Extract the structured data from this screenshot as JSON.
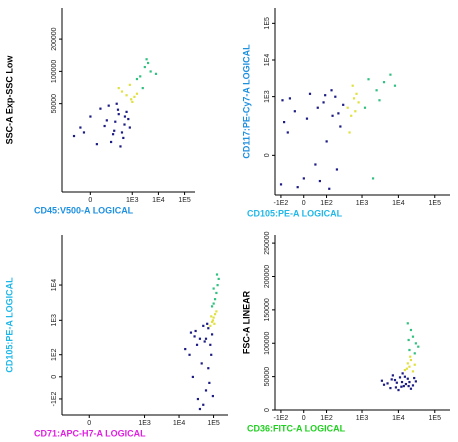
{
  "chart_data": [
    {
      "type": "scatter",
      "x_label": "CD45:V500-A LOGICAL",
      "x_label_color": "#1e90e0",
      "y_label": "SSC-A Exp-SSC Low",
      "y_label_color": "#000000",
      "xscale": "logicle",
      "yscale": "log",
      "xlim": [
        -300,
        250000
      ],
      "ylim": [
        7500,
        390000
      ],
      "xticks": [
        0,
        {
          "value": 1000,
          "label": "1E3"
        },
        {
          "value": 10000,
          "label": "1E4"
        },
        {
          "value": 100000,
          "label": "1E5"
        }
      ],
      "yticks": [
        50000,
        100000,
        200000
      ],
      "series": [
        {
          "color": "#1c1c85",
          "x": [
            -50,
            100,
            200,
            300,
            -100,
            500,
            50,
            150,
            400,
            250,
            700,
            0,
            350,
            80,
            600,
            -30,
            220,
            450,
            120,
            800,
            30,
            280,
            520,
            180
          ],
          "values": [
            30000,
            35000,
            28000,
            40000,
            25000,
            32000,
            45000,
            22000,
            27000,
            50000,
            36000,
            38000,
            20000,
            31000,
            42000,
            27000,
            34000,
            24000,
            48000,
            30000,
            21000,
            44000,
            38000,
            26000
          ]
        },
        {
          "color": "#e0e040",
          "x": [
            600,
            900,
            400,
            1200,
            300,
            1500,
            800,
            1000
          ],
          "values": [
            60000,
            55000,
            65000,
            58000,
            70000,
            62000,
            75000,
            52000
          ]
        },
        {
          "color": "#30c080",
          "x": [
            2000,
            3000,
            1500,
            4000,
            2500,
            5000,
            3500,
            8000
          ],
          "values": [
            90000,
            110000,
            85000,
            120000,
            70000,
            100000,
            130000,
            95000
          ]
        }
      ]
    },
    {
      "type": "scatter",
      "x_label": "CD105:PE-A LOGICAL",
      "x_label_color": "#20b8e8",
      "y_label": "CD117:PE-Cy7-A LOGICAL",
      "y_label_color": "#1e90e0",
      "xscale": "logicle",
      "yscale": "logicle",
      "xlim": [
        -150,
        262144
      ],
      "ylim": [
        -300,
        262144
      ],
      "xticks": [
        {
          "value": -100,
          "label": "-1E2"
        },
        0,
        {
          "value": 100,
          "label": "1E2"
        },
        {
          "value": 1000,
          "label": "1E3"
        },
        {
          "value": 10000,
          "label": "1E4"
        },
        {
          "value": 100000,
          "label": "1E5"
        }
      ],
      "yticks": [
        0,
        {
          "value": 1000,
          "label": "1E3"
        },
        {
          "value": 10000,
          "label": "1E4"
        },
        {
          "value": 100000,
          "label": "1E5"
        }
      ],
      "series": [
        {
          "color": "#1c1c85",
          "x": [
            -80,
            0,
            50,
            100,
            -50,
            150,
            200,
            20,
            -100,
            80,
            250,
            -30,
            120,
            180,
            60,
            -60,
            300,
            10,
            140,
            -90,
            40,
            220,
            90,
            -20
          ],
          "values": [
            200,
            -100,
            500,
            50,
            900,
            300,
            -50,
            1200,
            -150,
            700,
            150,
            400,
            -200,
            1000,
            -120,
            100,
            600,
            250,
            1500,
            800,
            -30,
            350,
            1100,
            -180
          ]
        },
        {
          "color": "#e0e040",
          "x": [
            400,
            600,
            500,
            700,
            450,
            800,
            550,
            650
          ],
          "values": [
            500,
            900,
            300,
            1200,
            100,
            700,
            2000,
            400
          ]
        },
        {
          "color": "#30c080",
          "x": [
            1500,
            2500,
            4000,
            1200,
            6000,
            2000,
            3000,
            8000
          ],
          "values": [
            3000,
            1500,
            2500,
            500,
            4000,
            -100,
            800,
            2000
          ]
        }
      ]
    },
    {
      "type": "scatter",
      "x_label": "CD71:APC-H7-A LOGICAL",
      "x_label_color": "#e020e0",
      "y_label": "CD105:PE-A LOGICAL",
      "y_label_color": "#20b8e8",
      "xscale": "logicle",
      "yscale": "logicle",
      "xlim": [
        -150,
        262144
      ],
      "ylim": [
        -300,
        262144
      ],
      "xticks": [
        0,
        {
          "value": 1000,
          "label": "1E3"
        },
        {
          "value": 10000,
          "label": "1E4"
        },
        {
          "value": 100000,
          "label": "1E5"
        }
      ],
      "yticks": [
        {
          "value": -100,
          "label": "-1E2"
        },
        0,
        {
          "value": 100,
          "label": "1E2"
        },
        {
          "value": 1000,
          "label": "1E3"
        },
        {
          "value": 10000,
          "label": "1E4"
        }
      ],
      "series": [
        {
          "color": "#1c1c85",
          "x": [
            20000,
            40000,
            60000,
            30000,
            80000,
            50000,
            25000,
            70000,
            45000,
            90000,
            35000,
            55000,
            15000,
            65000,
            40000,
            75000,
            28000,
            85000,
            50000,
            60000,
            33000,
            95000,
            22000,
            70000
          ],
          "values": [
            100,
            300,
            -50,
            500,
            200,
            -150,
            0,
            600,
            50,
            400,
            -100,
            250,
            150,
            800,
            -200,
            -20,
            350,
            100,
            700,
            300,
            200,
            -80,
            450,
            30
          ]
        },
        {
          "color": "#e0e040",
          "x": [
            90000,
            100000,
            80000,
            110000,
            95000,
            120000,
            85000,
            105000
          ],
          "values": [
            900,
            1200,
            700,
            1500,
            1000,
            1800,
            1300,
            800
          ]
        },
        {
          "color": "#30c080",
          "x": [
            100000,
            120000,
            90000,
            130000,
            110000,
            140000,
            100000,
            125000
          ],
          "values": [
            3000,
            6000,
            2500,
            10000,
            4000,
            15000,
            8000,
            20000
          ]
        }
      ]
    },
    {
      "type": "scatter",
      "x_label": "CD36:FITC-A LOGICAL",
      "x_label_color": "#20d020",
      "y_label": "FSC-A LINEAR",
      "y_label_color": "#000000",
      "xscale": "logicle",
      "yscale": "linear",
      "xlim": [
        -150,
        262144
      ],
      "ylim": [
        0,
        262144
      ],
      "xticks": [
        {
          "value": -100,
          "label": "-1E2"
        },
        0,
        {
          "value": 100,
          "label": "1E2"
        },
        {
          "value": 1000,
          "label": "1E3"
        },
        {
          "value": 10000,
          "label": "1E4"
        },
        {
          "value": 100000,
          "label": "1E5"
        }
      ],
      "yticks": [
        0,
        50000,
        100000,
        150000,
        200000,
        250000
      ],
      "series": [
        {
          "color": "#1c1c85",
          "x": [
            5000,
            8000,
            12000,
            15000,
            4000,
            20000,
            10000,
            7000,
            25000,
            6000,
            18000,
            9000,
            14000,
            3500,
            22000,
            11000,
            16000,
            30000,
            8500,
            13000,
            19000,
            6500,
            27000,
            12500
          ],
          "values": [
            40000,
            45000,
            35000,
            50000,
            38000,
            42000,
            30000,
            52000,
            37000,
            33000,
            47000,
            41000,
            36000,
            44000,
            32000,
            49000,
            39000,
            43000,
            34000,
            55000,
            36000,
            46000,
            48000,
            42000
          ]
        },
        {
          "color": "#e0e040",
          "x": [
            15000,
            20000,
            18000,
            25000,
            22000,
            17000,
            28000,
            21000
          ],
          "values": [
            60000,
            65000,
            70000,
            58000,
            75000,
            62000,
            68000,
            80000
          ]
        },
        {
          "color": "#30c080",
          "x": [
            20000,
            25000,
            18000,
            30000,
            22000,
            35000,
            19000,
            28000
          ],
          "values": [
            90000,
            110000,
            130000,
            100000,
            120000,
            95000,
            105000,
            85000
          ]
        }
      ]
    }
  ]
}
